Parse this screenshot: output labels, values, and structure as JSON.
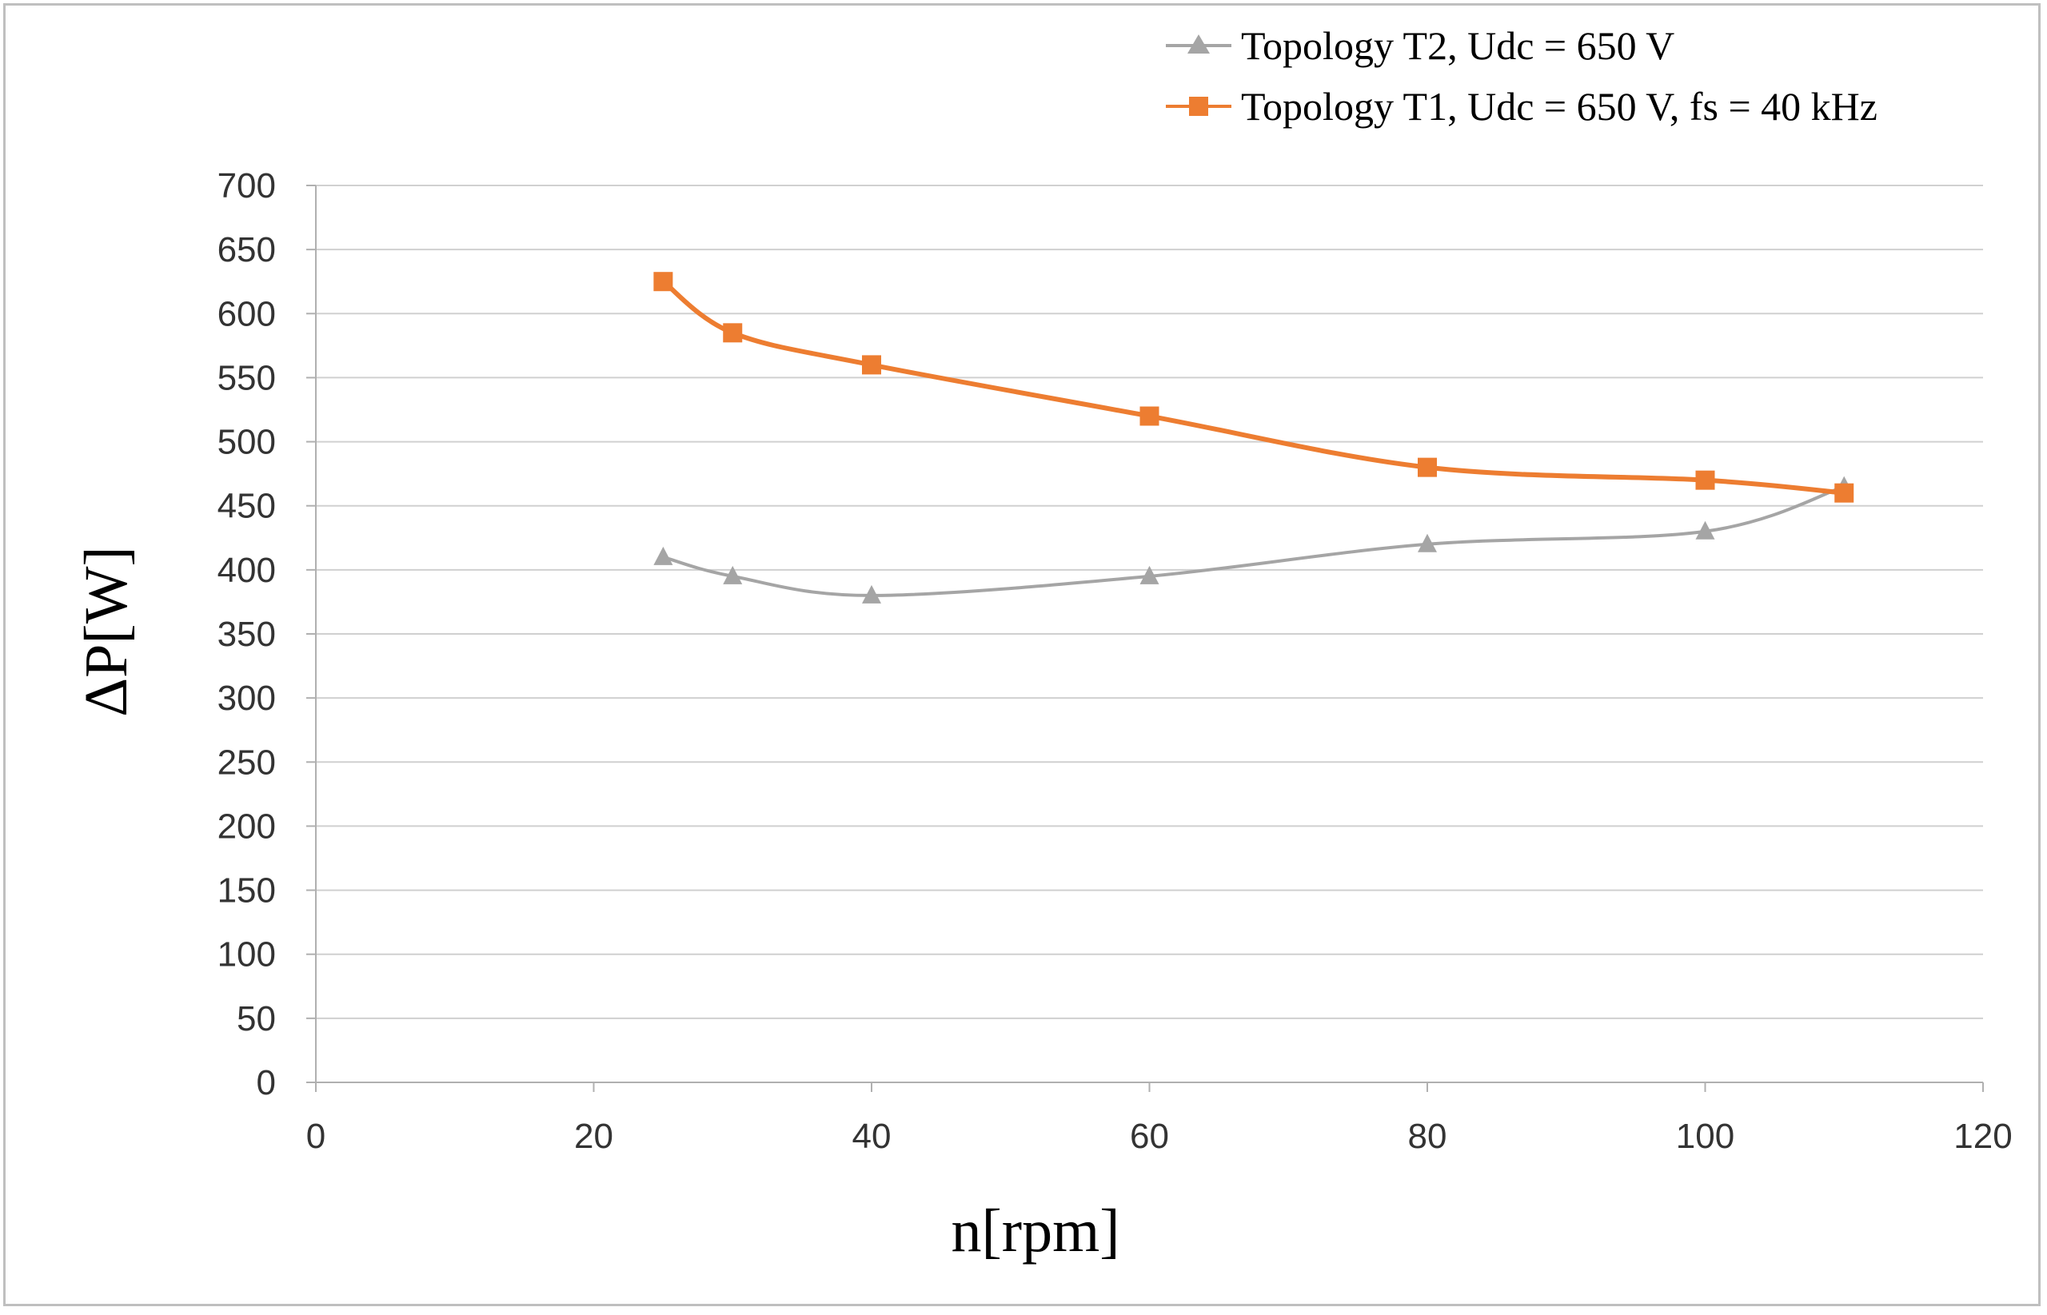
{
  "colors": {
    "t2": "#a5a5a5",
    "t1": "#ed7d31",
    "grid": "#d0d0d0",
    "axis": "#b0b0b0"
  },
  "chart_data": {
    "type": "line",
    "title": "",
    "xlabel": "n[rpm]",
    "ylabel": "ΔP[W]",
    "xlim": [
      0,
      120
    ],
    "ylim": [
      0,
      700
    ],
    "xticks": [
      0,
      20,
      40,
      60,
      80,
      100,
      120
    ],
    "yticks": [
      0,
      50,
      100,
      150,
      200,
      250,
      300,
      350,
      400,
      450,
      500,
      550,
      600,
      650,
      700
    ],
    "grid": "horizontal",
    "legend_position": "top-right",
    "series": [
      {
        "name": "Topology T2, Udc = 650 V",
        "marker": "triangle",
        "color_key": "t2",
        "x": [
          25,
          30,
          40,
          60,
          80,
          100,
          110
        ],
        "y": [
          410,
          395,
          380,
          395,
          420,
          430,
          465
        ]
      },
      {
        "name": "Topology T1, Udc = 650 V, fs = 40 kHz",
        "marker": "square",
        "color_key": "t1",
        "x": [
          25,
          30,
          40,
          60,
          80,
          100,
          110
        ],
        "y": [
          625,
          585,
          560,
          520,
          480,
          470,
          460
        ]
      }
    ]
  }
}
